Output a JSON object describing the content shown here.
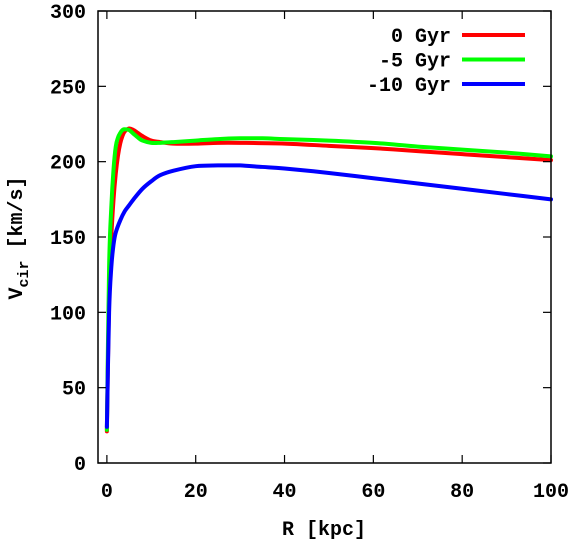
{
  "chart_data": {
    "type": "line",
    "xlabel": "R [kpc]",
    "ylabel": {
      "main": "V",
      "sub": "cir",
      "unit": " [km/s]"
    },
    "xlim": [
      -2,
      100
    ],
    "ylim": [
      0,
      300
    ],
    "xticks": [
      "0",
      "20",
      "40",
      "60",
      "80",
      "100"
    ],
    "xtick_values": [
      0,
      20,
      40,
      60,
      80,
      100
    ],
    "yticks": [
      "0",
      "50",
      "100",
      "150",
      "200",
      "250",
      "300"
    ],
    "ytick_values": [
      0,
      50,
      100,
      150,
      200,
      250,
      300
    ],
    "grid": false,
    "legend_position": "top-right",
    "series": [
      {
        "name": "0 Gyr",
        "color": "#ff0000",
        "x": [
          0,
          0.5,
          1,
          1.5,
          2,
          2.5,
          3,
          3.5,
          4,
          5,
          6,
          7,
          8,
          10,
          12,
          15,
          20,
          25,
          30,
          40,
          50,
          60,
          70,
          80,
          90,
          100
        ],
        "y": [
          21,
          110,
          150,
          175,
          192,
          204,
          212,
          217,
          220,
          222,
          221,
          219,
          217,
          214,
          213,
          212,
          212,
          212.5,
          212.5,
          212,
          210.5,
          209,
          207,
          205,
          203,
          201
        ]
      },
      {
        "name": "-5 Gyr",
        "color": "#00ff00",
        "x": [
          0,
          0.5,
          1,
          1.5,
          2,
          2.5,
          3,
          3.5,
          4,
          5,
          6,
          7,
          8,
          10,
          12,
          15,
          20,
          25,
          30,
          35,
          40,
          50,
          60,
          70,
          80,
          90,
          100
        ],
        "y": [
          22,
          130,
          170,
          195,
          210,
          216,
          219,
          221,
          221.5,
          221,
          218.5,
          216,
          214,
          212.5,
          212.5,
          213,
          214,
          215,
          215.5,
          215.5,
          215,
          214,
          212.5,
          210,
          208,
          206,
          203.5
        ]
      },
      {
        "name": "-10 Gyr",
        "color": "#0000ff",
        "x": [
          0,
          0.5,
          1,
          1.5,
          2,
          3,
          4,
          5,
          6,
          8,
          10,
          12,
          15,
          20,
          25,
          28,
          30,
          35,
          40,
          50,
          60,
          70,
          80,
          90,
          100
        ],
        "y": [
          24,
          100,
          130,
          145,
          153,
          161,
          167,
          171,
          175,
          182,
          187,
          191,
          194,
          197,
          197.5,
          197.5,
          197.5,
          196.5,
          195.5,
          192.5,
          189,
          185.5,
          182,
          178.5,
          175
        ]
      }
    ]
  }
}
